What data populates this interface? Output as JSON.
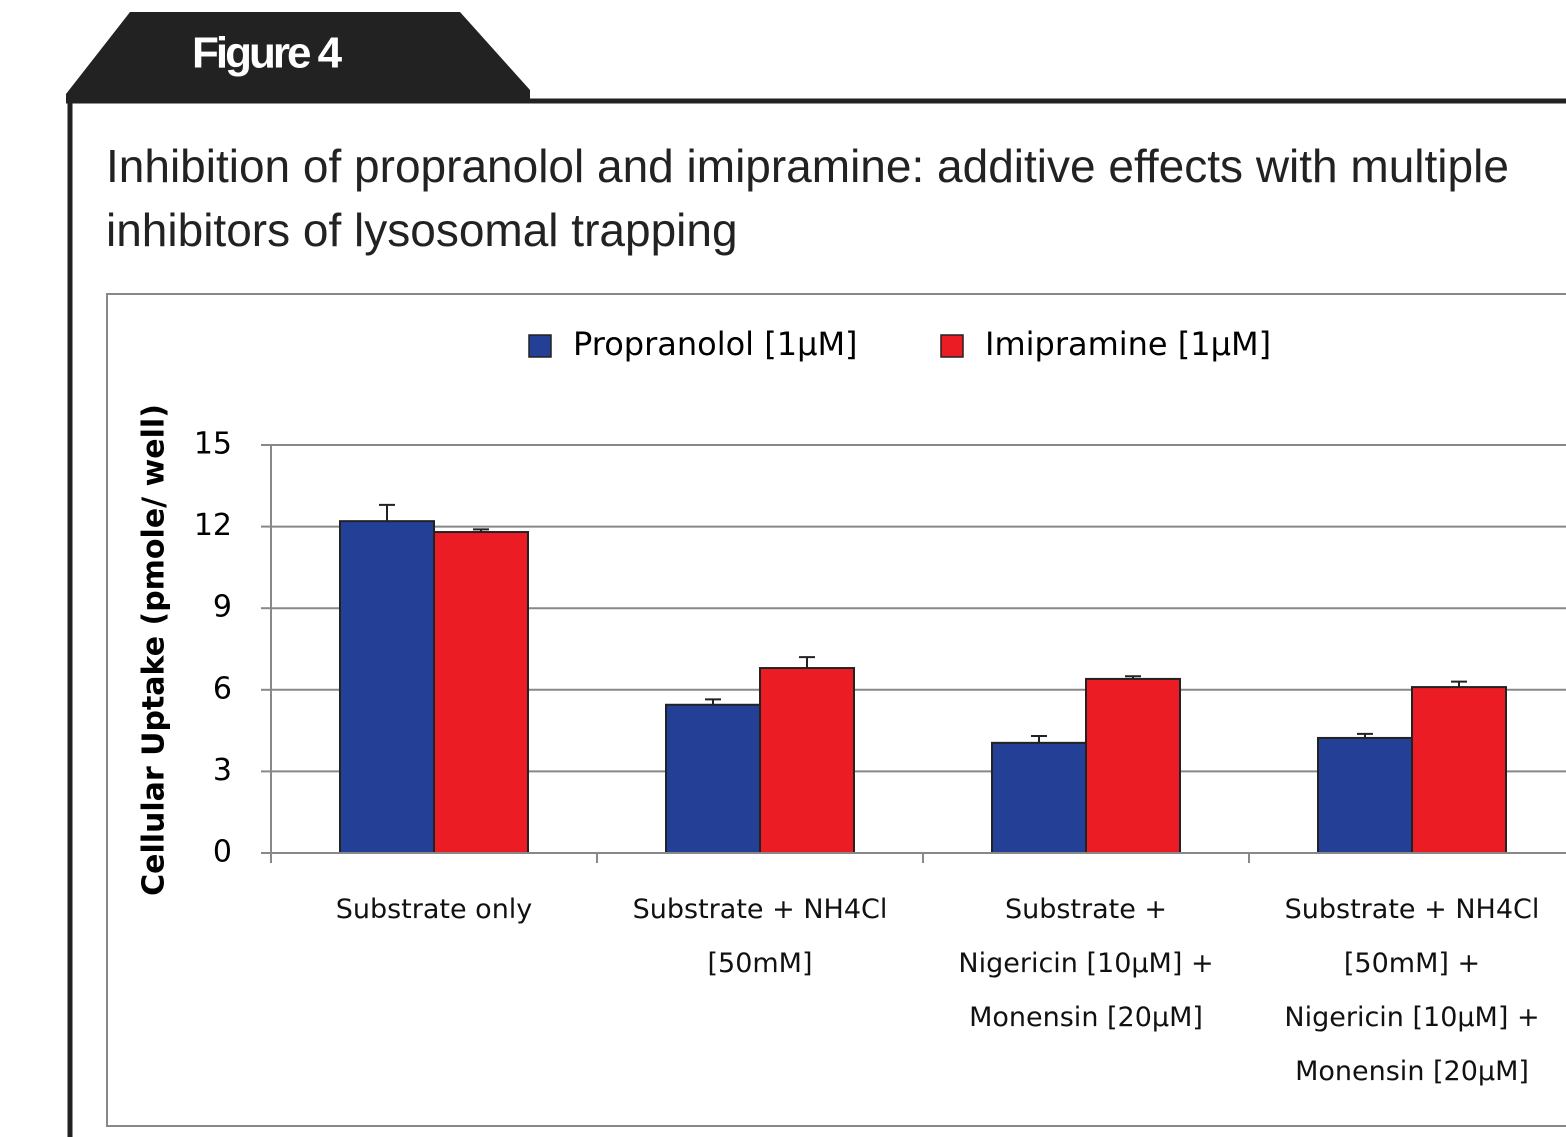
{
  "figure_label": "Figure 4",
  "chart_data": {
    "type": "bar",
    "title": "Inhibition of propranolol and imipramine: additive effects with multiple inhibitors of lysosomal trapping",
    "y_label": "Cellular Uptake (pmole/ well)",
    "categories": [
      "Substrate only",
      "Substrate + NH4Cl\n[50mM]",
      "Substrate +\nNigericin [10µM] +\nMonensin [20µM]",
      "Substrate + NH4Cl\n[50mM] +\nNigericin [10µM] +\nMonensin [20µM]"
    ],
    "series": [
      {
        "name": "Propranolol [1µM]",
        "color": "#233f96",
        "values": [
          12.2,
          5.45,
          4.05,
          4.23
        ],
        "errors": [
          0.6,
          0.2,
          0.25,
          0.15
        ]
      },
      {
        "name": "Imipramine [1µM]",
        "color": "#ec1c24",
        "values": [
          11.8,
          6.8,
          6.4,
          6.1
        ],
        "errors": [
          0.1,
          0.4,
          0.1,
          0.2
        ]
      }
    ],
    "ylim": [
      0,
      15
    ],
    "yticks": [
      0,
      3,
      6,
      9,
      12,
      15
    ],
    "grid": true,
    "legend": "top"
  }
}
